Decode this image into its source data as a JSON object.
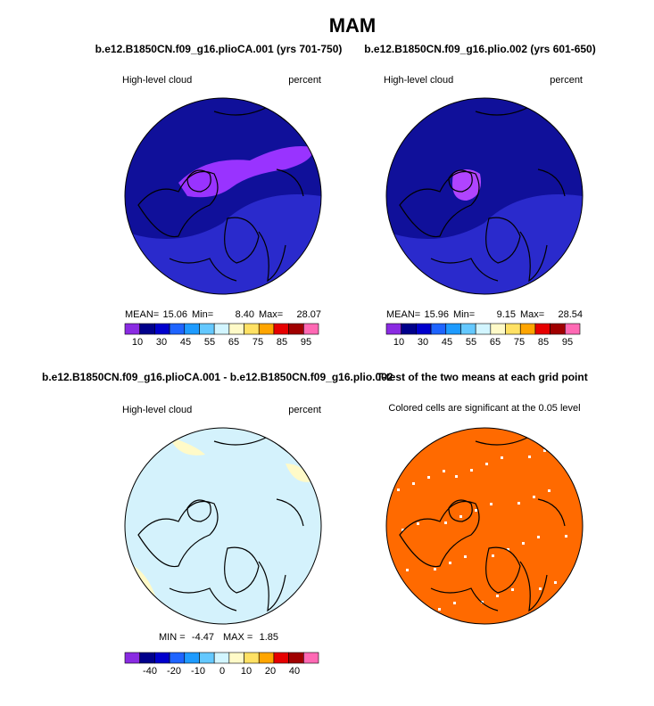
{
  "title": "MAM",
  "panels": [
    {
      "title": "b.e12.B1850CN.f09_g16.plioCA.001 (yrs 701-750)",
      "left_label": "High-level cloud",
      "right_label": "percent",
      "stats": [
        {
          "label": "MEAN=",
          "value": "15.06"
        },
        {
          "label": "Min=",
          "value": "8.40"
        },
        {
          "label": "Max=",
          "value": "28.07"
        }
      ],
      "colorbar": [
        "10",
        "30",
        "45",
        "55",
        "65",
        "75",
        "85",
        "95"
      ]
    },
    {
      "title": "b.e12.B1850CN.f09_g16.plio.002 (yrs 601-650)",
      "left_label": "High-level cloud",
      "right_label": "percent",
      "stats": [
        {
          "label": "MEAN=",
          "value": "15.96"
        },
        {
          "label": "Min=",
          "value": "9.15"
        },
        {
          "label": "Max=",
          "value": "28.54"
        }
      ],
      "colorbar": [
        "10",
        "30",
        "45",
        "55",
        "65",
        "75",
        "85",
        "95"
      ]
    },
    {
      "title": "b.e12.B1850CN.f09_g16.plioCA.001 - b.e12.B1850CN.f09_g16.plio.002",
      "left_label": "High-level cloud",
      "right_label": "percent",
      "stats": [
        {
          "label": "MIN =",
          "value": "-4.47"
        },
        {
          "label": "MAX =",
          "value": "1.85"
        }
      ],
      "colorbar": [
        "-40",
        "-20",
        "-10",
        "0",
        "10",
        "20",
        "40"
      ]
    },
    {
      "title": "T-test of the two means at each grid point",
      "note": "Colored cells are significant at the 0.05 level"
    }
  ]
}
